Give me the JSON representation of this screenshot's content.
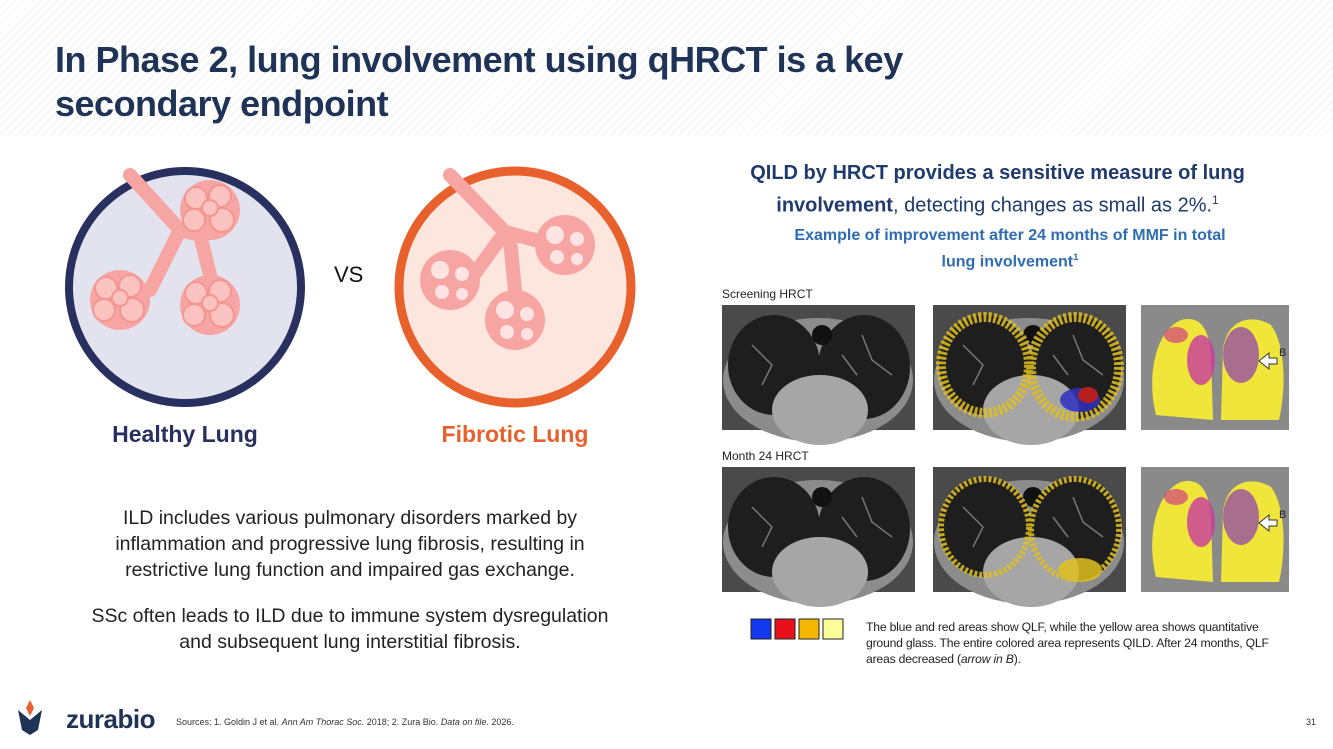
{
  "header": {
    "title": "In Phase 2, lung involvement using qHRCT is a key secondary endpoint"
  },
  "left": {
    "healthy_label": "Healthy Lung",
    "vs": "VS",
    "fibrotic_label": "Fibrotic Lung",
    "paragraphs": [
      "ILD includes various pulmonary disorders marked by inflammation and progressive lung fibrosis, resulting in restrictive lung function and impaired gas exchange.",
      "SSc often leads to ILD due to immune system dysregulation and subsequent lung interstitial fibrosis."
    ]
  },
  "right": {
    "headline_bold": "QILD by HRCT provides a sensitive measure of lung involvement",
    "headline_rest": ", detecting changes as small as 2%.",
    "headline_sup": "1",
    "subtitle": "Example of improvement after 24 months of MMF in total lung involvement",
    "subtitle_sup": "1",
    "rows": [
      {
        "label": "Screening HRCT",
        "marker": "B"
      },
      {
        "label": "Month 24 HRCT",
        "marker": "B"
      }
    ],
    "legend_text": "The blue and red areas show QLF, while the yellow area shows quantitative ground glass. The entire colored area represents QILD. After 24 months, QLF areas decreased (",
    "legend_italic": "arrow in B",
    "legend_end": ")."
  },
  "footer": {
    "logo": "zurabio",
    "sources": [
      "Sources: 1. Goldin J et al. ",
      "Ann Am Thorac Soc.",
      " 2018; 2. Zura Bio. ",
      "Data on file.",
      " 2026."
    ],
    "page_number": "31"
  }
}
